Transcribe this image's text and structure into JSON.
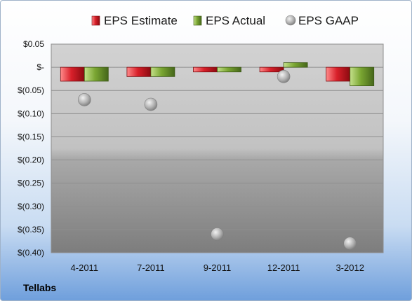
{
  "company": "Tellabs",
  "chart_data": {
    "type": "bar",
    "title": "",
    "xlabel": "",
    "ylabel": "",
    "categories": [
      "4-2011",
      "7-2011",
      "9-2011",
      "12-2011",
      "3-2012"
    ],
    "series": [
      {
        "name": "EPS Estimate",
        "type": "bar",
        "color": "#c8141e",
        "values": [
          -0.03,
          -0.02,
          -0.01,
          -0.01,
          -0.03
        ]
      },
      {
        "name": "EPS Actual",
        "type": "bar",
        "color": "#6f9a2a",
        "values": [
          -0.03,
          -0.02,
          -0.01,
          0.01,
          -0.04
        ]
      },
      {
        "name": "EPS GAAP",
        "type": "scatter",
        "color": "#a8a8a8",
        "values": [
          -0.07,
          -0.08,
          -0.36,
          -0.02,
          -0.38
        ]
      }
    ],
    "ylim": [
      -0.4,
      0.05
    ],
    "ytick_values": [
      0.05,
      0,
      -0.05,
      -0.1,
      -0.15,
      -0.2,
      -0.25,
      -0.3,
      -0.35,
      -0.4
    ],
    "ytick_labels": [
      "$0.05",
      "$-",
      "$(0.05)",
      "$(0.10)",
      "$(0.15)",
      "$(0.20)",
      "$(0.25)",
      "$(0.30)",
      "$(0.35)",
      "$(0.40)"
    ],
    "grid": true,
    "legend_position": "top"
  }
}
